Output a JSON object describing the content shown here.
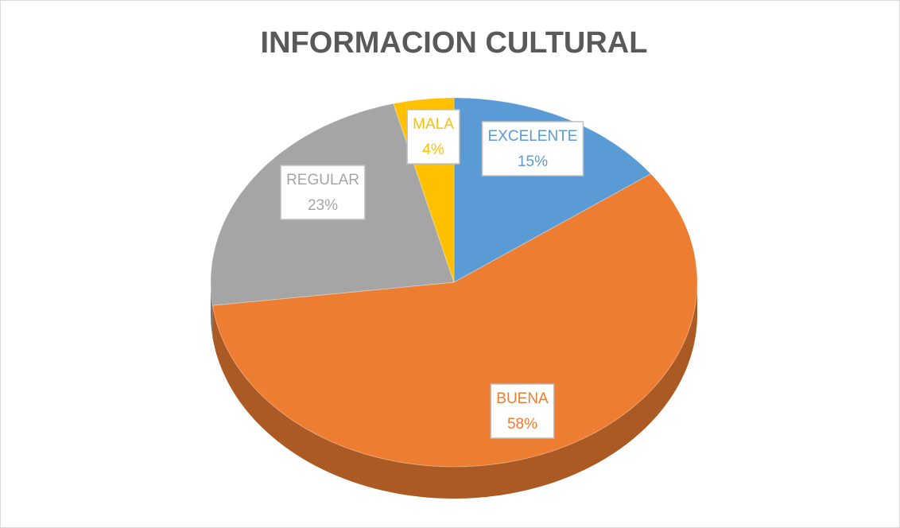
{
  "chart_data": {
    "type": "pie",
    "title": "INFORMACION CULTURAL",
    "categories": [
      "EXCELENTE",
      "BUENA",
      "REGULAR",
      "MALA"
    ],
    "values": [
      15,
      58,
      23,
      4
    ],
    "value_labels": [
      "15%",
      "58%",
      "23%",
      "4%"
    ],
    "colors": [
      "#5b9bd5",
      "#ed7d31",
      "#a5a5a5",
      "#ffc000"
    ]
  }
}
